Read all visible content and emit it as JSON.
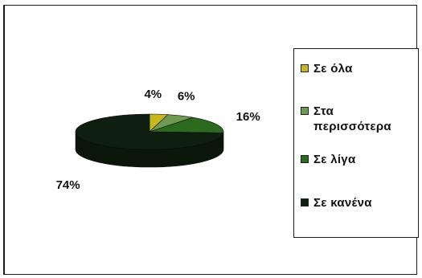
{
  "chart_data": {
    "type": "pie",
    "categories": [
      "Σε όλα",
      "Στα περισσότερα",
      "Σε λίγα",
      "Σε κανένα"
    ],
    "values": [
      4,
      6,
      16,
      74
    ],
    "data_labels": [
      "4%",
      "6%",
      "16%",
      "74%"
    ],
    "colors": [
      "#c7b81c",
      "#6f9a52",
      "#2c6a1f",
      "#0f1f0f"
    ],
    "legend_position": "right",
    "style": "3d-pie"
  },
  "legend": {
    "items": [
      {
        "label_line1": "Σε όλα",
        "label_line2": ""
      },
      {
        "label_line1": "Στα",
        "label_line2": "περισσότερα"
      },
      {
        "label_line1": "Σε λίγα",
        "label_line2": ""
      },
      {
        "label_line1": "Σε κανένα",
        "label_line2": ""
      }
    ]
  }
}
